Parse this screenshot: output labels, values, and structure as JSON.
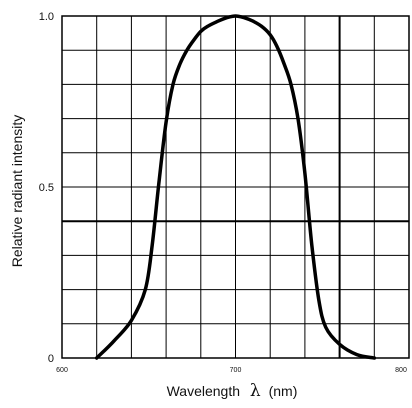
{
  "chart_data": {
    "type": "line",
    "title": "",
    "xlabel": "Wavelength",
    "xlabel_symbol": "λ",
    "xlabel_unit": "(nm)",
    "ylabel": "Relative radiant intensity",
    "xlim": [
      600,
      800
    ],
    "ylim": [
      0,
      1.0
    ],
    "x_ticks": [
      {
        "value": 600,
        "label": "600"
      },
      {
        "value": 700,
        "label": "700"
      },
      {
        "value": 800,
        "label": "800"
      }
    ],
    "y_ticks": [
      {
        "value": 0,
        "label": "0"
      },
      {
        "value": 0.5,
        "label": "0.5"
      },
      {
        "value": 1.0,
        "label": "1.0"
      }
    ],
    "grid": true,
    "series": [
      {
        "color": "#000000",
        "x": [
          620,
          630,
          640,
          648,
          652,
          656,
          660,
          664,
          668,
          672,
          676,
          680,
          684,
          690,
          695,
          700,
          705,
          710,
          715,
          720,
          724,
          728,
          732,
          736,
          740,
          744,
          748,
          752,
          760,
          770,
          780
        ],
        "y": [
          0.0,
          0.05,
          0.11,
          0.2,
          0.33,
          0.52,
          0.69,
          0.8,
          0.86,
          0.9,
          0.93,
          0.955,
          0.97,
          0.985,
          0.995,
          1.0,
          0.995,
          0.985,
          0.97,
          0.945,
          0.91,
          0.86,
          0.8,
          0.7,
          0.54,
          0.33,
          0.17,
          0.09,
          0.04,
          0.01,
          0.0
        ]
      }
    ],
    "reference_lines": [
      {
        "orientation": "horizontal",
        "value": 0.4
      },
      {
        "orientation": "vertical",
        "value": 760
      }
    ]
  }
}
